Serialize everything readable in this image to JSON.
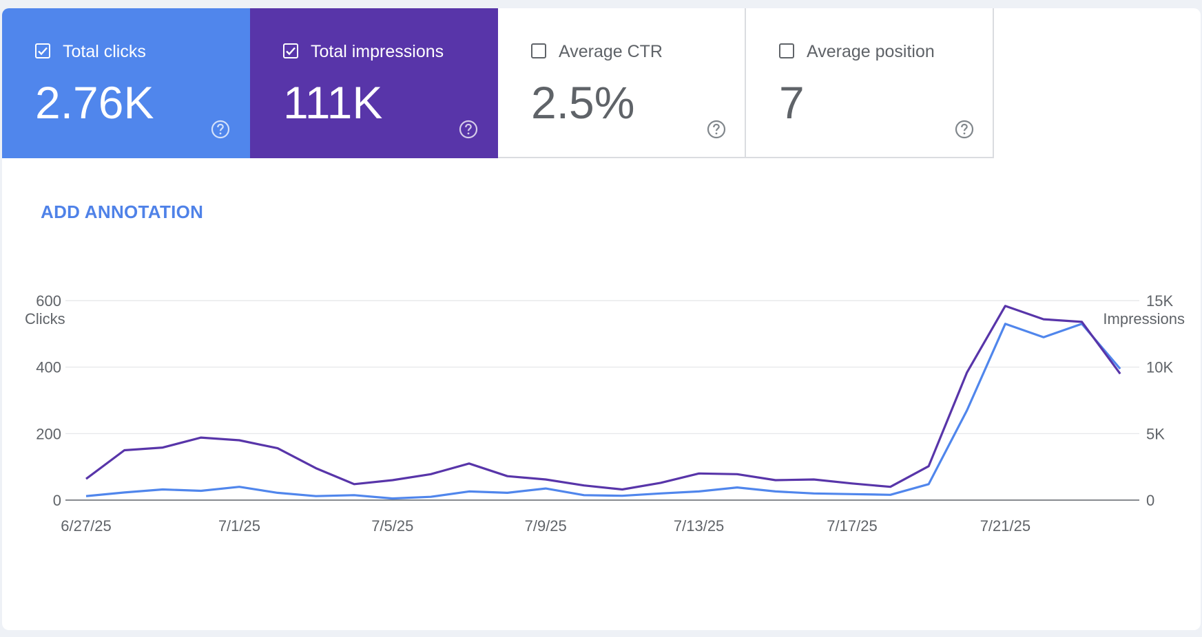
{
  "cards": [
    {
      "label": "Total clicks",
      "value": "2.76K",
      "checked": true,
      "color": "#5086ec"
    },
    {
      "label": "Total impressions",
      "value": "111K",
      "checked": true,
      "color": "#5835a9"
    },
    {
      "label": "Average CTR",
      "value": "2.5%",
      "checked": false,
      "color": "#ffffff"
    },
    {
      "label": "Average position",
      "value": "7",
      "checked": false,
      "color": "#ffffff"
    }
  ],
  "help_icon": "help-circle-icon",
  "annotation_button": "ADD ANNOTATION",
  "chart_data": {
    "type": "line",
    "ylabel_left": "Clicks",
    "ylabel_right": "Impressions",
    "left_ticks": [
      "600",
      "400",
      "200",
      "0"
    ],
    "right_ticks": [
      "15K",
      "10K",
      "5K",
      "0"
    ],
    "ylim_left": [
      0,
      600
    ],
    "ylim_right": [
      0,
      15000
    ],
    "x_tick_labels": [
      "6/27/25",
      "7/1/25",
      "7/5/25",
      "7/9/25",
      "7/13/25",
      "7/17/25",
      "7/21/25"
    ],
    "x": [
      "6/27/25",
      "6/28/25",
      "6/29/25",
      "6/30/25",
      "7/1/25",
      "7/2/25",
      "7/3/25",
      "7/4/25",
      "7/5/25",
      "7/6/25",
      "7/7/25",
      "7/8/25",
      "7/9/25",
      "7/10/25",
      "7/11/25",
      "7/12/25",
      "7/13/25",
      "7/14/25",
      "7/15/25",
      "7/16/25",
      "7/17/25",
      "7/18/25",
      "7/19/25",
      "7/20/25",
      "7/21/25",
      "7/22/25",
      "7/23/25",
      "7/24/25"
    ],
    "grid": true,
    "series": [
      {
        "name": "Total clicks",
        "axis": "left",
        "color": "#5086ec",
        "values": [
          12,
          23,
          32,
          28,
          40,
          22,
          12,
          15,
          5,
          10,
          26,
          22,
          35,
          15,
          13,
          20,
          26,
          38,
          26,
          20,
          18,
          16,
          48,
          270,
          530,
          490,
          530,
          395
        ]
      },
      {
        "name": "Total impressions",
        "axis": "right",
        "color": "#5835a9",
        "values": [
          1600,
          3750,
          3950,
          4700,
          4500,
          3900,
          2400,
          1200,
          1500,
          1950,
          2750,
          1800,
          1550,
          1100,
          800,
          1300,
          2000,
          1950,
          1500,
          1550,
          1250,
          1000,
          2550,
          9600,
          14600,
          13600,
          13400,
          9500
        ]
      }
    ]
  }
}
